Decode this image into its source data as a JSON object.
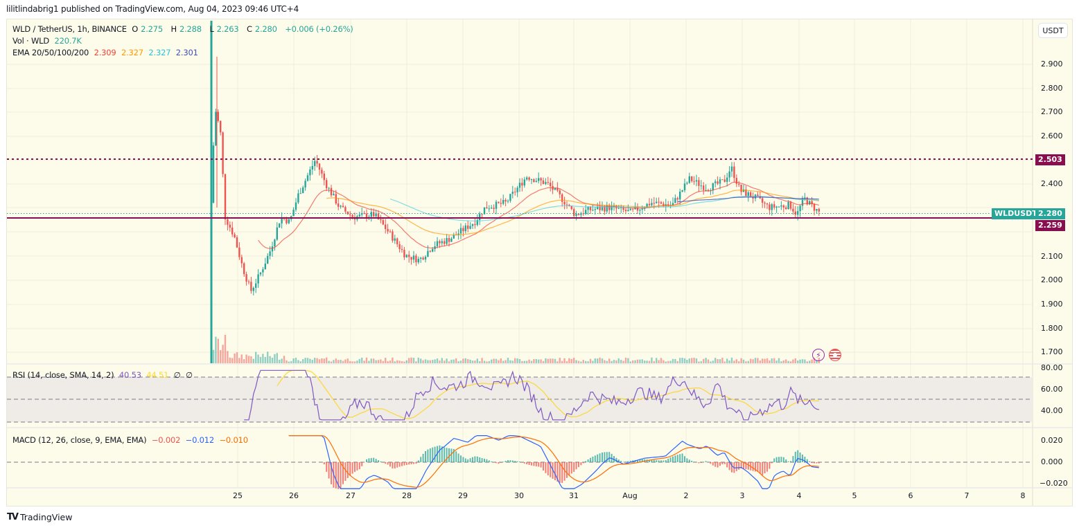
{
  "publisher_line": "lilitlindabrig1 published on TradingView.com, Aug 04, 2023 09:46 UTC+4",
  "header": {
    "symbol": "WLD / TetherUS, 1h, BINANCE",
    "open_label": "O",
    "open": "2.275",
    "high_label": "H",
    "high": "2.288",
    "low_label": "L",
    "low": "2.263",
    "close_label": "C",
    "close": "2.280",
    "change": "+0.006 (+0.26%)"
  },
  "volume_legend": {
    "label": "Vol · WLD",
    "value": "220.7K"
  },
  "ema_legend": {
    "label": "EMA 20/50/100/200",
    "ema20": "2.309",
    "ema50": "2.327",
    "ema100": "2.327",
    "ema200": "2.301"
  },
  "rsi_legend": {
    "label": "RSI (14, close, SMA, 14, 2)",
    "rsi": "40.53",
    "sma": "44.51",
    "extra1": "∅",
    "extra2": "∅"
  },
  "macd_legend": {
    "label": "MACD (12, 26, close, 9, EMA, EMA)",
    "hist": "−0.002",
    "macd": "−0.012",
    "signal": "−0.010"
  },
  "currency_button": "USDT",
  "price_axis": [
    "2.900",
    "2.800",
    "2.700",
    "2.600",
    "2.400",
    "2.300",
    "2.200",
    "2.100",
    "2.000",
    "1.900",
    "1.800",
    "1.700"
  ],
  "rsi_axis": [
    "80.00",
    "60.00",
    "40.00"
  ],
  "macd_axis": [
    "0.020",
    "0.000",
    "−0.020"
  ],
  "tags": {
    "resistance": "2.503",
    "symbol_name": "WLDUSDT",
    "last_price": "2.280",
    "support": "2.259"
  },
  "date_axis": [
    "25",
    "26",
    "27",
    "28",
    "29",
    "30",
    "31",
    "Aug",
    "2",
    "3",
    "4",
    "5",
    "6",
    "7",
    "8"
  ],
  "footer_brand": "TradingView",
  "colors": {
    "up": "#26a69a",
    "down": "#ef5350",
    "ema20": "#f44336",
    "ema50": "#ff9800",
    "ema100": "#4dd0e1",
    "ema200": "#3f51b5",
    "level": "#880e4f",
    "rsi": "#7e57c2",
    "rsi_sma": "#fdd835",
    "macd": "#2962ff",
    "signal": "#ff6d00",
    "background": "#fdfbea"
  },
  "chart_data": [
    {
      "type": "candlestick",
      "title": "WLD / TetherUS, 1h, BINANCE",
      "x": [
        "Jul 24",
        "Jul 25",
        "Jul 26",
        "Jul 27",
        "Jul 28",
        "Jul 29",
        "Jul 30",
        "Jul 31",
        "Aug 1",
        "Aug 2",
        "Aug 3",
        "Aug 4"
      ],
      "approx_close": [
        2.35,
        2.02,
        2.4,
        2.27,
        2.1,
        2.2,
        2.42,
        2.27,
        2.3,
        2.4,
        2.33,
        2.28
      ],
      "ylabel": "USDT",
      "ylim": [
        1.65,
        3.0
      ],
      "hlines": [
        {
          "value": 2.503,
          "style": "dotted",
          "label": "resistance"
        },
        {
          "value": 2.259,
          "style": "solid",
          "label": "support"
        }
      ],
      "legend": [
        "EMA 20",
        "EMA 50",
        "EMA 100",
        "EMA 200"
      ]
    },
    {
      "type": "line",
      "title": "RSI (14, close, SMA, 14, 2)",
      "ylim": [
        30,
        80
      ],
      "bands": [
        30,
        50,
        70
      ],
      "series": [
        {
          "name": "RSI",
          "last": 40.53
        },
        {
          "name": "RSI SMA",
          "last": 44.51
        }
      ]
    },
    {
      "type": "bar",
      "title": "MACD (12, 26, close, 9, EMA, EMA)",
      "ylim": [
        -0.022,
        0.024
      ],
      "series": [
        {
          "name": "Histogram",
          "last": -0.002
        },
        {
          "name": "MACD",
          "last": -0.012
        },
        {
          "name": "Signal",
          "last": -0.01
        }
      ]
    }
  ]
}
